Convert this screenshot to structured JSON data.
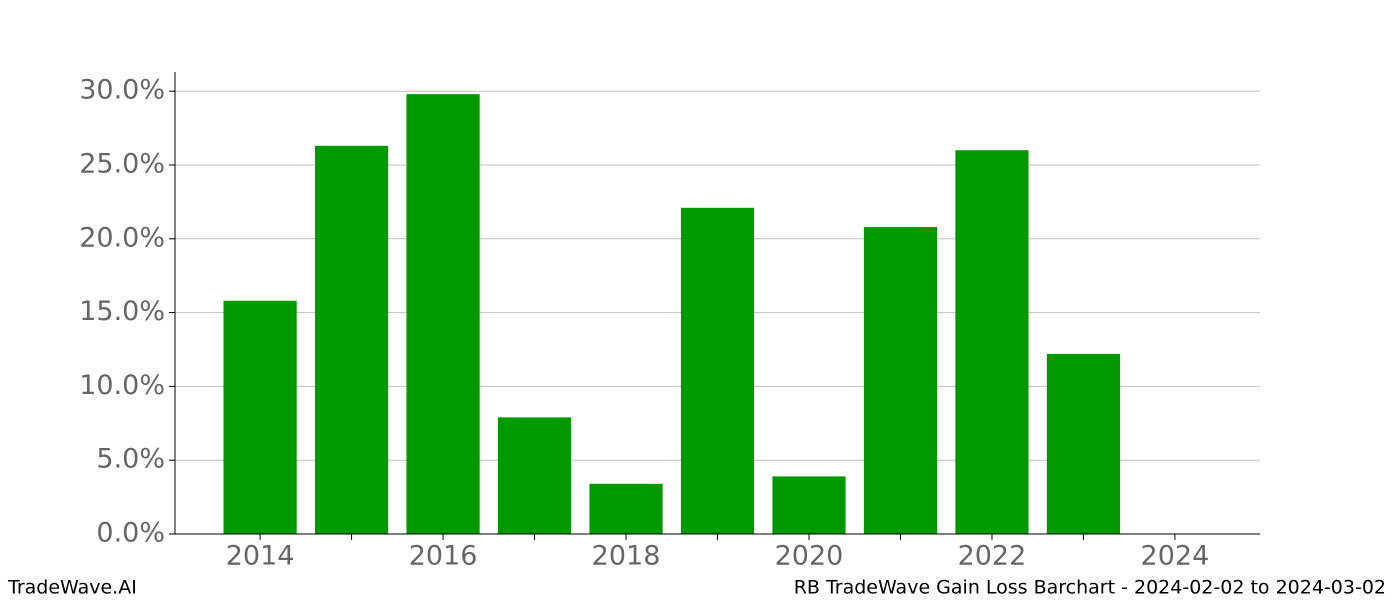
{
  "chart_data": {
    "type": "bar",
    "title": "RB TradeWave Gain Loss Barchart - 2024-02-02 to 2024-03-02",
    "watermark": "TradeWave.AI",
    "x": [
      2014,
      2015,
      2016,
      2017,
      2018,
      2019,
      2020,
      2021,
      2022,
      2023
    ],
    "values": [
      15.8,
      26.3,
      29.8,
      7.9,
      3.4,
      22.1,
      3.9,
      20.8,
      26.0,
      12.2
    ],
    "color": "#009900",
    "bar_width": 0.8,
    "xlim": [
      2013.07,
      2024.93
    ],
    "xticks": [
      2014,
      2016,
      2018,
      2020,
      2022,
      2024
    ],
    "xminorticks": [
      2015,
      2017,
      2019,
      2021,
      2023
    ],
    "ylim": [
      0,
      31.3
    ],
    "yticks": [
      {
        "value": 0,
        "label": "0.0%"
      },
      {
        "value": 5,
        "label": "5.0%"
      },
      {
        "value": 10,
        "label": "10.0%"
      },
      {
        "value": 15,
        "label": "15.0%"
      },
      {
        "value": 20,
        "label": "20.0%"
      },
      {
        "value": 25,
        "label": "25.0%"
      },
      {
        "value": 30,
        "label": "30.0%"
      }
    ],
    "grid": true
  }
}
